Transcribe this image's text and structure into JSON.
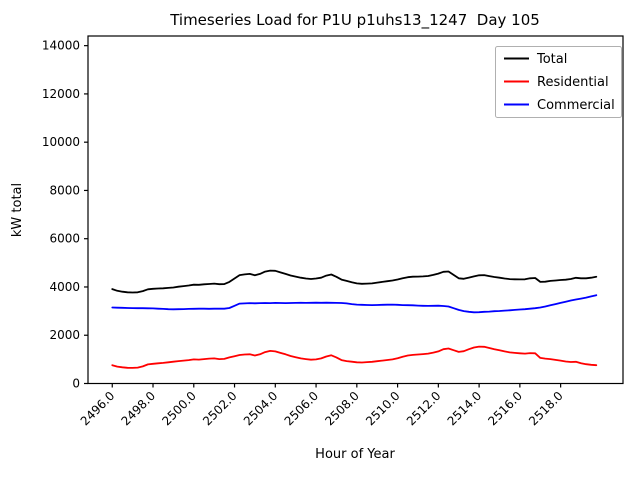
{
  "figure": {
    "title": "Timeseries Load for P1U p1uhs13_1247  Day 105",
    "xlabel": "Hour of Year",
    "ylabel": "kW total"
  },
  "legend": {
    "position": "upper right",
    "entries": [
      {
        "label": "Total",
        "color": "#000000"
      },
      {
        "label": "Residential",
        "color": "#ff0000"
      },
      {
        "label": "Commercial",
        "color": "#0000ff"
      }
    ]
  },
  "chart_data": {
    "type": "line",
    "title": "Timeseries Load for P1U p1uhs13_1247  Day 105",
    "xlabel": "Hour of Year",
    "ylabel": "kW total",
    "xlim": [
      2494.81,
      2521.06
    ],
    "ylim": [
      0,
      14400
    ],
    "grid": false,
    "legend_position": "upper right",
    "xticks": [
      2496,
      2498,
      2500,
      2502,
      2504,
      2506,
      2508,
      2510,
      2512,
      2514,
      2516,
      2518
    ],
    "xtick_labels": [
      "2496.0",
      "2498.0",
      "2500.0",
      "2502.0",
      "2504.0",
      "2506.0",
      "2508.0",
      "2510.0",
      "2512.0",
      "2514.0",
      "2516.0",
      "2518.0"
    ],
    "yticks": [
      0,
      2000,
      4000,
      6000,
      8000,
      10000,
      12000,
      14000
    ],
    "ytick_labels": [
      "0",
      "2000",
      "4000",
      "6000",
      "8000",
      "10000",
      "12000",
      "14000"
    ],
    "x": [
      2496.0,
      2496.25,
      2496.5,
      2496.75,
      2497.0,
      2497.25,
      2497.5,
      2497.75,
      2498.0,
      2498.25,
      2498.5,
      2498.75,
      2499.0,
      2499.25,
      2499.5,
      2499.75,
      2500.0,
      2500.25,
      2500.5,
      2500.75,
      2501.0,
      2501.25,
      2501.5,
      2501.75,
      2502.0,
      2502.25,
      2502.5,
      2502.75,
      2503.0,
      2503.25,
      2503.5,
      2503.75,
      2504.0,
      2504.25,
      2504.5,
      2504.75,
      2505.0,
      2505.25,
      2505.5,
      2505.75,
      2506.0,
      2506.25,
      2506.5,
      2506.75,
      2507.0,
      2507.25,
      2507.5,
      2507.75,
      2508.0,
      2508.25,
      2508.5,
      2508.75,
      2509.0,
      2509.25,
      2509.5,
      2509.75,
      2510.0,
      2510.25,
      2510.5,
      2510.75,
      2511.0,
      2511.25,
      2511.5,
      2511.75,
      2512.0,
      2512.25,
      2512.5,
      2512.75,
      2513.0,
      2513.25,
      2513.5,
      2513.75,
      2514.0,
      2514.25,
      2514.5,
      2514.75,
      2515.0,
      2515.25,
      2515.5,
      2515.75,
      2516.0,
      2516.25,
      2516.5,
      2516.75,
      2517.0,
      2517.25,
      2517.5,
      2517.75,
      2518.0,
      2518.25,
      2518.5,
      2518.75,
      2519.0,
      2519.25,
      2519.5,
      2519.75
    ],
    "series": [
      {
        "name": "Total",
        "color": "#000000",
        "values": [
          3910,
          3840,
          3805,
          3780,
          3770,
          3780,
          3830,
          3905,
          3925,
          3935,
          3945,
          3960,
          3980,
          4010,
          4035,
          4060,
          4095,
          4090,
          4110,
          4125,
          4140,
          4115,
          4120,
          4210,
          4350,
          4490,
          4520,
          4540,
          4485,
          4540,
          4635,
          4680,
          4670,
          4605,
          4540,
          4475,
          4430,
          4385,
          4350,
          4330,
          4350,
          4385,
          4470,
          4515,
          4420,
          4305,
          4250,
          4195,
          4150,
          4130,
          4140,
          4150,
          4180,
          4210,
          4240,
          4270,
          4310,
          4360,
          4405,
          4425,
          4430,
          4440,
          4455,
          4500,
          4555,
          4630,
          4640,
          4500,
          4360,
          4340,
          4390,
          4440,
          4485,
          4490,
          4450,
          4415,
          4385,
          4350,
          4325,
          4320,
          4315,
          4320,
          4360,
          4370,
          4210,
          4220,
          4250,
          4270,
          4290,
          4300,
          4330,
          4380,
          4360,
          4360,
          4385,
          4420
        ]
      },
      {
        "name": "Residential",
        "color": "#ff0000",
        "values": [
          760,
          700,
          670,
          650,
          645,
          660,
          710,
          790,
          815,
          835,
          855,
          880,
          905,
          930,
          950,
          970,
          1000,
          990,
          1010,
          1030,
          1040,
          1010,
          1020,
          1080,
          1130,
          1180,
          1200,
          1210,
          1160,
          1210,
          1300,
          1350,
          1330,
          1270,
          1210,
          1140,
          1090,
          1040,
          1010,
          985,
          1000,
          1040,
          1120,
          1170,
          1080,
          970,
          930,
          905,
          880,
          870,
          885,
          900,
          925,
          950,
          975,
          1000,
          1050,
          1110,
          1160,
          1185,
          1200,
          1220,
          1240,
          1280,
          1330,
          1420,
          1450,
          1380,
          1310,
          1340,
          1420,
          1490,
          1530,
          1520,
          1470,
          1420,
          1380,
          1330,
          1290,
          1270,
          1250,
          1240,
          1260,
          1250,
          1060,
          1030,
          1010,
          980,
          950,
          910,
          890,
          900,
          840,
          800,
          775,
          760
        ]
      },
      {
        "name": "Commercial",
        "color": "#0000ff",
        "values": [
          3150,
          3140,
          3135,
          3130,
          3125,
          3120,
          3120,
          3115,
          3110,
          3100,
          3090,
          3080,
          3075,
          3080,
          3085,
          3090,
          3095,
          3100,
          3100,
          3095,
          3100,
          3105,
          3100,
          3130,
          3220,
          3310,
          3320,
          3330,
          3325,
          3330,
          3335,
          3330,
          3340,
          3335,
          3330,
          3335,
          3340,
          3345,
          3340,
          3345,
          3350,
          3345,
          3350,
          3345,
          3340,
          3335,
          3320,
          3290,
          3270,
          3260,
          3255,
          3250,
          3255,
          3260,
          3265,
          3270,
          3260,
          3250,
          3245,
          3240,
          3230,
          3220,
          3215,
          3220,
          3225,
          3210,
          3190,
          3120,
          3050,
          3000,
          2970,
          2950,
          2955,
          2970,
          2980,
          2995,
          3005,
          3020,
          3035,
          3050,
          3065,
          3080,
          3100,
          3120,
          3150,
          3190,
          3240,
          3290,
          3340,
          3390,
          3440,
          3480,
          3520,
          3560,
          3610,
          3660
        ]
      }
    ]
  }
}
